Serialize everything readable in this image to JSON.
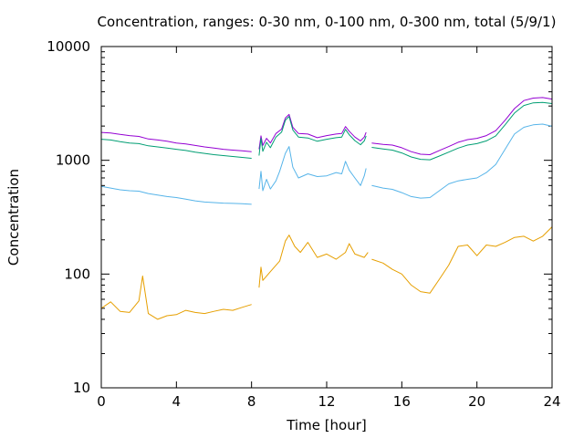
{
  "chart_data": {
    "type": "line",
    "title": "Concentration, ranges: 0-30 nm, 0-100 nm, 0-300 nm, total (5/9/1)",
    "xlabel": "Time [hour]",
    "ylabel": "Concentration",
    "xlim": [
      0,
      24
    ],
    "ylim": [
      10,
      10000
    ],
    "yscale": "log",
    "grid": false,
    "legend": "none",
    "xticks": [
      0,
      4,
      8,
      12,
      16,
      20,
      24
    ],
    "xtick_labels": [
      "0",
      "4",
      "8",
      "12",
      "16",
      "20",
      "24"
    ],
    "yticks": [
      10,
      100,
      1000,
      10000
    ],
    "ytick_labels": [
      "10",
      "100",
      "1000",
      "10000"
    ],
    "series": [
      {
        "color": "#9400d3",
        "segments": [
          [
            [
              0,
              1760
            ],
            [
              0.5,
              1740
            ],
            [
              1,
              1690
            ],
            [
              1.5,
              1650
            ],
            [
              2,
              1620
            ],
            [
              2.5,
              1540
            ],
            [
              3,
              1510
            ],
            [
              3.5,
              1470
            ],
            [
              4,
              1420
            ],
            [
              4.5,
              1390
            ],
            [
              5,
              1350
            ],
            [
              5.5,
              1310
            ],
            [
              6,
              1280
            ],
            [
              6.5,
              1250
            ],
            [
              7,
              1230
            ],
            [
              7.5,
              1210
            ],
            [
              8,
              1190
            ]
          ],
          [
            [
              8.4,
              1250
            ],
            [
              8.5,
              1640
            ],
            [
              8.6,
              1350
            ],
            [
              8.8,
              1560
            ],
            [
              9,
              1420
            ],
            [
              9.3,
              1720
            ],
            [
              9.6,
              1880
            ],
            [
              9.8,
              2350
            ],
            [
              10,
              2530
            ],
            [
              10.2,
              1950
            ],
            [
              10.5,
              1720
            ],
            [
              11,
              1700
            ],
            [
              11.5,
              1580
            ],
            [
              12,
              1650
            ],
            [
              12.5,
              1700
            ],
            [
              12.8,
              1720
            ],
            [
              13,
              1980
            ],
            [
              13.2,
              1800
            ],
            [
              13.5,
              1600
            ],
            [
              13.8,
              1480
            ],
            [
              14,
              1600
            ],
            [
              14.1,
              1760
            ]
          ],
          [
            [
              14.4,
              1420
            ],
            [
              15,
              1380
            ],
            [
              15.5,
              1360
            ],
            [
              16,
              1290
            ],
            [
              16.5,
              1190
            ],
            [
              17,
              1130
            ],
            [
              17.5,
              1120
            ],
            [
              18,
              1220
            ],
            [
              18.5,
              1320
            ],
            [
              19,
              1440
            ],
            [
              19.5,
              1520
            ],
            [
              20,
              1560
            ],
            [
              20.5,
              1650
            ],
            [
              21,
              1820
            ],
            [
              21.5,
              2250
            ],
            [
              22,
              2850
            ],
            [
              22.5,
              3350
            ],
            [
              23,
              3520
            ],
            [
              23.5,
              3560
            ],
            [
              24,
              3450
            ]
          ]
        ]
      },
      {
        "color": "#009e73",
        "segments": [
          [
            [
              0,
              1530
            ],
            [
              0.5,
              1510
            ],
            [
              1,
              1460
            ],
            [
              1.5,
              1420
            ],
            [
              2,
              1400
            ],
            [
              2.5,
              1340
            ],
            [
              3,
              1310
            ],
            [
              3.5,
              1280
            ],
            [
              4,
              1250
            ],
            [
              4.5,
              1220
            ],
            [
              5,
              1180
            ],
            [
              5.5,
              1150
            ],
            [
              6,
              1120
            ],
            [
              6.5,
              1100
            ],
            [
              7,
              1080
            ],
            [
              7.5,
              1060
            ],
            [
              8,
              1040
            ]
          ],
          [
            [
              8.4,
              1100
            ],
            [
              8.5,
              1560
            ],
            [
              8.6,
              1200
            ],
            [
              8.8,
              1440
            ],
            [
              9,
              1290
            ],
            [
              9.3,
              1600
            ],
            [
              9.6,
              1770
            ],
            [
              9.8,
              2250
            ],
            [
              10,
              2430
            ],
            [
              10.2,
              1850
            ],
            [
              10.5,
              1600
            ],
            [
              11,
              1570
            ],
            [
              11.5,
              1470
            ],
            [
              12,
              1530
            ],
            [
              12.5,
              1580
            ],
            [
              12.8,
              1600
            ],
            [
              13,
              1870
            ],
            [
              13.2,
              1680
            ],
            [
              13.5,
              1490
            ],
            [
              13.8,
              1370
            ],
            [
              14,
              1480
            ],
            [
              14.1,
              1640
            ]
          ],
          [
            [
              14.4,
              1300
            ],
            [
              15,
              1260
            ],
            [
              15.5,
              1230
            ],
            [
              16,
              1160
            ],
            [
              16.5,
              1070
            ],
            [
              17,
              1020
            ],
            [
              17.5,
              1010
            ],
            [
              18,
              1090
            ],
            [
              18.5,
              1180
            ],
            [
              19,
              1280
            ],
            [
              19.5,
              1360
            ],
            [
              20,
              1400
            ],
            [
              20.5,
              1480
            ],
            [
              21,
              1640
            ],
            [
              21.5,
              2050
            ],
            [
              22,
              2600
            ],
            [
              22.5,
              3030
            ],
            [
              23,
              3200
            ],
            [
              23.5,
              3230
            ],
            [
              24,
              3150
            ]
          ]
        ]
      },
      {
        "color": "#56b4e9",
        "segments": [
          [
            [
              0,
              590
            ],
            [
              0.5,
              570
            ],
            [
              1,
              550
            ],
            [
              1.5,
              540
            ],
            [
              2,
              535
            ],
            [
              2.5,
              510
            ],
            [
              3,
              495
            ],
            [
              3.5,
              480
            ],
            [
              4,
              470
            ],
            [
              4.5,
              455
            ],
            [
              5,
              440
            ],
            [
              5.5,
              430
            ],
            [
              6,
              425
            ],
            [
              6.5,
              420
            ],
            [
              7,
              418
            ],
            [
              7.5,
              415
            ],
            [
              8,
              410
            ]
          ],
          [
            [
              8.4,
              560
            ],
            [
              8.5,
              800
            ],
            [
              8.6,
              540
            ],
            [
              8.8,
              680
            ],
            [
              9,
              560
            ],
            [
              9.3,
              660
            ],
            [
              9.5,
              800
            ],
            [
              9.8,
              1150
            ],
            [
              10,
              1320
            ],
            [
              10.2,
              870
            ],
            [
              10.5,
              700
            ],
            [
              11,
              760
            ],
            [
              11.5,
              720
            ],
            [
              12,
              730
            ],
            [
              12.5,
              780
            ],
            [
              12.8,
              760
            ],
            [
              13,
              980
            ],
            [
              13.2,
              820
            ],
            [
              13.5,
              700
            ],
            [
              13.8,
              600
            ],
            [
              14,
              730
            ],
            [
              14.1,
              850
            ]
          ],
          [
            [
              14.4,
              600
            ],
            [
              15,
              570
            ],
            [
              15.5,
              555
            ],
            [
              16,
              520
            ],
            [
              16.5,
              480
            ],
            [
              17,
              465
            ],
            [
              17.5,
              470
            ],
            [
              18,
              540
            ],
            [
              18.5,
              620
            ],
            [
              19,
              660
            ],
            [
              19.5,
              680
            ],
            [
              20,
              700
            ],
            [
              20.5,
              780
            ],
            [
              21,
              920
            ],
            [
              21.5,
              1250
            ],
            [
              22,
              1700
            ],
            [
              22.5,
              1950
            ],
            [
              23,
              2050
            ],
            [
              23.5,
              2080
            ],
            [
              24,
              1990
            ]
          ]
        ]
      },
      {
        "color": "#e69f00",
        "segments": [
          [
            [
              0,
              50
            ],
            [
              0.5,
              57
            ],
            [
              1,
              47
            ],
            [
              1.5,
              46
            ],
            [
              2,
              58
            ],
            [
              2.2,
              96
            ],
            [
              2.5,
              45
            ],
            [
              3,
              40
            ],
            [
              3.5,
              43
            ],
            [
              4,
              44
            ],
            [
              4.5,
              48
            ],
            [
              5,
              46
            ],
            [
              5.5,
              45
            ],
            [
              6,
              47
            ],
            [
              6.5,
              49
            ],
            [
              7,
              48
            ],
            [
              7.5,
              51
            ],
            [
              8,
              54
            ]
          ],
          [
            [
              8.4,
              76
            ],
            [
              8.5,
              115
            ],
            [
              8.6,
              88
            ],
            [
              9,
              105
            ],
            [
              9.5,
              130
            ],
            [
              9.8,
              195
            ],
            [
              10,
              220
            ],
            [
              10.3,
              175
            ],
            [
              10.6,
              155
            ],
            [
              11,
              190
            ],
            [
              11.5,
              140
            ],
            [
              12,
              150
            ],
            [
              12.5,
              135
            ],
            [
              13,
              155
            ],
            [
              13.2,
              185
            ],
            [
              13.5,
              150
            ],
            [
              14,
              140
            ],
            [
              14.2,
              155
            ]
          ],
          [
            [
              14.4,
              135
            ],
            [
              15,
              125
            ],
            [
              15.5,
              110
            ],
            [
              16,
              100
            ],
            [
              16.5,
              80
            ],
            [
              17,
              70
            ],
            [
              17.5,
              68
            ],
            [
              18,
              90
            ],
            [
              18.5,
              120
            ],
            [
              19,
              175
            ],
            [
              19.5,
              180
            ],
            [
              20,
              145
            ],
            [
              20.5,
              180
            ],
            [
              21,
              175
            ],
            [
              21.5,
              190
            ],
            [
              22,
              210
            ],
            [
              22.5,
              215
            ],
            [
              23,
              195
            ],
            [
              23.5,
              215
            ],
            [
              24,
              260
            ]
          ]
        ]
      }
    ]
  }
}
